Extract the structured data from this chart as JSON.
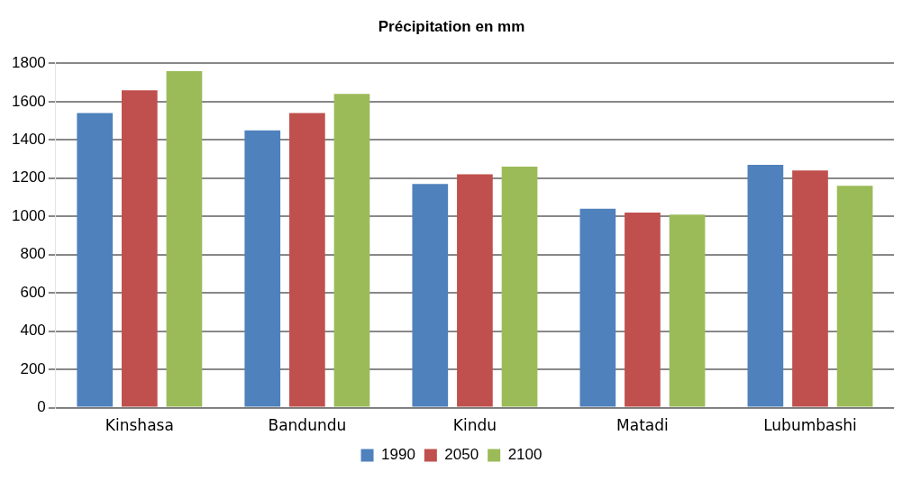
{
  "chart_data": {
    "type": "bar",
    "title": "Précipitation en mm",
    "categories": [
      "Kinshasa",
      "Bandundu",
      "Kindu",
      "Matadi",
      "Lubumbashi"
    ],
    "series": [
      {
        "name": "1990",
        "color": "#4f81bd",
        "values": [
          1540,
          1450,
          1170,
          1040,
          1270
        ]
      },
      {
        "name": "2050",
        "color": "#c0504d",
        "values": [
          1660,
          1540,
          1220,
          1020,
          1240
        ]
      },
      {
        "name": "2100",
        "color": "#9bbb59",
        "values": [
          1760,
          1640,
          1260,
          1010,
          1160
        ]
      }
    ],
    "ylim": [
      0,
      1800
    ],
    "yticks": [
      0,
      200,
      400,
      600,
      800,
      1000,
      1200,
      1400,
      1600,
      1800
    ],
    "grid": "y",
    "legend": "bottom"
  }
}
